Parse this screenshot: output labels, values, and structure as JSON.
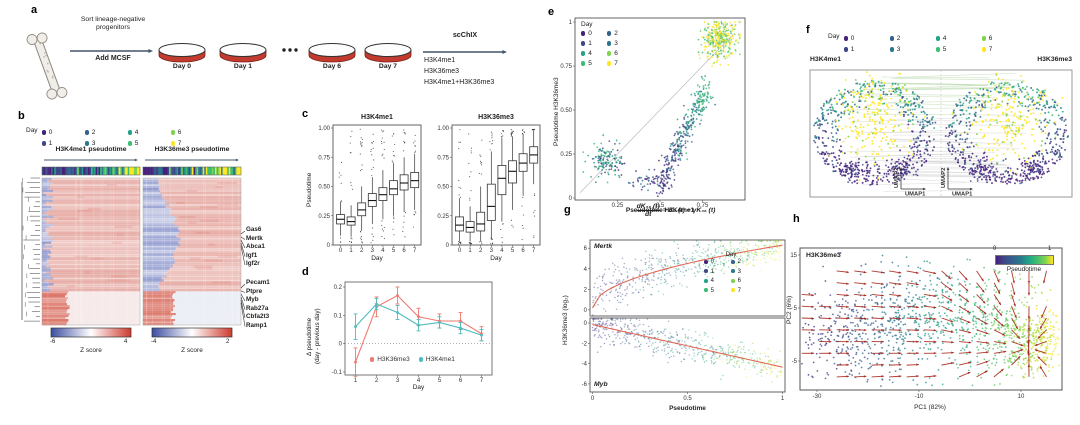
{
  "colors": {
    "day": [
      "#45217c",
      "#3f4788",
      "#34618d",
      "#2a788e",
      "#20a386",
      "#3dbc74",
      "#7ed34f",
      "#fde725"
    ],
    "salmon": "#ee7a6e",
    "teal": "#4fbcbf",
    "fit_red": "#e05a45",
    "quiver": "#a8271c",
    "heat_blue": "#7b87c6",
    "heat_pink": "#e29a92",
    "heat_red": "#d96a5c",
    "zscore_blue": "#3b4da0",
    "zscore_red": "#cf3a2e",
    "arrow_dark": "#44546a"
  },
  "day_legend": {
    "title": "Day",
    "days": [
      "0",
      "1",
      "2",
      "3",
      "4",
      "5",
      "6",
      "7"
    ]
  },
  "panel_a": {
    "label": "a",
    "sort_line1": "Sort lineage-negative",
    "sort_line2": "progenitors",
    "add_label": "Add MCSF",
    "dish_labels": [
      "Day 0",
      "Day 1",
      "Day 6",
      "Day 7"
    ],
    "scchix_label": "scChIX",
    "assays": [
      "H3K4me1",
      "H3K36me3",
      "H3K4me1+H3K36me3"
    ]
  },
  "panel_b": {
    "label": "b",
    "titles": [
      "H3K4me1 pseudotime",
      "H3K36me3 pseudotime"
    ],
    "genes_top": [
      "Gas6",
      "Mertk",
      "Abca1",
      "Igf1",
      "Igf2r"
    ],
    "genes_bottom": [
      "Pecam1",
      "Ptpre",
      "Myb",
      "Rab27a",
      "Cbfa2t3",
      "Ramp1"
    ],
    "colorbars": [
      {
        "min": "-6",
        "max": "4",
        "label": "Z score"
      },
      {
        "min": "-4",
        "max": "2",
        "label": "Z score"
      }
    ]
  },
  "panel_c": {
    "label": "c"
  },
  "panel_d": {
    "label": "d"
  },
  "panel_e": {
    "label": "e"
  },
  "panel_f": {
    "label": "f",
    "titles": [
      "H3K4me1",
      "H3K36me3"
    ],
    "x_axis": "UMAP1",
    "y_axis": "UMAP2"
  },
  "panel_g": {
    "label": "g",
    "equation": {
      "num": "dK₃₆ (t)",
      "den": "dt",
      "rhs": "= K₄ (t) − γK₃₆ (t)"
    }
  },
  "panel_h": {
    "label": "h",
    "title": "H3K36me3",
    "colorbar": {
      "min": "0",
      "max": "1",
      "label": "Pseudotime"
    }
  },
  "chart_data": [
    {
      "id": "c",
      "type": "boxplot",
      "xlabel": "Day",
      "ylabel": "Pseudotime",
      "categories": [
        "0",
        "1",
        "2",
        "3",
        "4",
        "5",
        "6",
        "7"
      ],
      "yticks": [
        "1.00",
        "0.75",
        "0.50",
        "0.25",
        "0"
      ],
      "ytick_vals": [
        1,
        0.75,
        0.5,
        0.25,
        0
      ],
      "panels": [
        {
          "title": "H3K4me1",
          "median": [
            0.22,
            0.2,
            0.3,
            0.38,
            0.43,
            0.48,
            0.53,
            0.55
          ],
          "q1": [
            0.18,
            0.17,
            0.25,
            0.33,
            0.38,
            0.43,
            0.47,
            0.49
          ],
          "q3": [
            0.26,
            0.24,
            0.36,
            0.44,
            0.49,
            0.55,
            0.6,
            0.62
          ],
          "lo": [
            0.08,
            0.07,
            0.12,
            0.18,
            0.22,
            0.25,
            0.28,
            0.3
          ],
          "hi": [
            0.37,
            0.34,
            0.5,
            0.58,
            0.64,
            0.7,
            0.75,
            0.78
          ]
        },
        {
          "title": "H3K36me3",
          "median": [
            0.17,
            0.15,
            0.18,
            0.33,
            0.57,
            0.63,
            0.7,
            0.77
          ],
          "q1": [
            0.12,
            0.11,
            0.12,
            0.21,
            0.43,
            0.53,
            0.63,
            0.7
          ],
          "q3": [
            0.24,
            0.2,
            0.28,
            0.52,
            0.68,
            0.72,
            0.78,
            0.84
          ],
          "lo": [
            0.03,
            0.03,
            0.03,
            0.06,
            0.2,
            0.3,
            0.42,
            0.52
          ],
          "hi": [
            0.4,
            0.33,
            0.5,
            0.8,
            0.92,
            0.93,
            0.95,
            0.98
          ]
        }
      ]
    },
    {
      "id": "d",
      "type": "line",
      "xlabel": "Day",
      "x": [
        1,
        2,
        3,
        4,
        5,
        6,
        7
      ],
      "ylabel_line1": "Δ pseudotime",
      "ylabel_line2": "(day - previous day)",
      "yticks": [
        "0.2",
        "0.1",
        "0",
        "-0.1"
      ],
      "ytick_vals": [
        0.2,
        0.1,
        0,
        -0.1
      ],
      "series": [
        {
          "name": "H3K36me3",
          "color_key": "salmon",
          "values": [
            -0.065,
            0.13,
            0.17,
            0.095,
            0.08,
            0.08,
            0.035
          ],
          "err": [
            0.05,
            0.035,
            0.03,
            0.03,
            0.025,
            0.03,
            0.025
          ]
        },
        {
          "name": "H3K4me1",
          "color_key": "teal",
          "values": [
            0.06,
            0.14,
            0.11,
            0.065,
            0.075,
            0.055,
            0.03
          ],
          "err": [
            0.045,
            0.02,
            0.025,
            0.02,
            0.02,
            0.02,
            0.02
          ]
        }
      ]
    },
    {
      "id": "e",
      "type": "scatter",
      "xlabel": "Pseudotime H3K4me1",
      "ylabel": "Pseudotime H3K36me3",
      "xticks": [
        "0.25",
        "0.5",
        "0.75"
      ],
      "xtick_vals": [
        0.25,
        0.5,
        0.75
      ],
      "yticks": [
        "1",
        "0.75",
        "0.50",
        "0.25",
        "0"
      ],
      "ytick_vals": [
        1,
        0.75,
        0.5,
        0.25,
        0
      ],
      "identity_line": true,
      "clusters": [
        {
          "kind": "blob",
          "cx": 0.18,
          "cy": 0.22,
          "sx": 0.055,
          "sy": 0.05,
          "n": 140,
          "days": [
            0,
            1,
            2,
            3,
            4,
            4,
            5,
            5
          ]
        },
        {
          "kind": "blob",
          "cx": 0.42,
          "cy": 0.09,
          "sx": 0.07,
          "sy": 0.035,
          "n": 55,
          "days": [
            0,
            0,
            1,
            2,
            3
          ]
        },
        {
          "kind": "band",
          "x0": 0.5,
          "y0": 0.06,
          "x1": 0.78,
          "y1": 0.64,
          "sx": 0.02,
          "sy": 0.045,
          "n": 340,
          "days": [
            0,
            1,
            2,
            3,
            4,
            5
          ]
        },
        {
          "kind": "blob",
          "cx": 0.85,
          "cy": 0.9,
          "sx": 0.05,
          "sy": 0.06,
          "n": 330,
          "days": [
            5,
            6,
            6,
            7,
            7,
            7
          ]
        }
      ]
    },
    {
      "id": "g",
      "type": "scatter",
      "xlabel": "Pseudotime",
      "ylabel": "H3K36me3 (log₂)",
      "xticks": [
        "0",
        "0.5",
        "1"
      ],
      "xtick_vals": [
        0,
        0.5,
        1
      ],
      "subpanels": [
        {
          "gene": "Mertk",
          "yticks": [
            "6",
            "4",
            "2",
            "0"
          ],
          "ytick_vals": [
            6,
            4,
            2,
            0
          ],
          "ymin": -0.6,
          "ymax": 6.8,
          "trend": "rise",
          "fit_a": 0.2,
          "fit_b": 6.1,
          "fit_pow": 0.5,
          "noise": 1.05
        },
        {
          "gene": "Myb",
          "yticks": [
            "0",
            "-2",
            "-4",
            "-6"
          ],
          "ytick_vals": [
            0,
            -2,
            -4,
            -6
          ],
          "ymin": -6.8,
          "ymax": 0.5,
          "trend": "fall",
          "fit_a": -0.15,
          "fit_b": -4.2,
          "fit_pow": 1,
          "noise": 0.95
        }
      ]
    },
    {
      "id": "h",
      "type": "scatter-quiver",
      "xlabel": "PC1 (82%)",
      "ylabel": "PC2 (6%)",
      "xticks": [
        "-30",
        "-10",
        "10"
      ],
      "xtick_vals": [
        -30,
        -10,
        10
      ],
      "yticks": [
        "15",
        "5",
        "-5"
      ],
      "ytick_vals": [
        15,
        5,
        -5
      ],
      "clusters": [
        {
          "cx": -21,
          "cy": 0,
          "sx": 7.5,
          "sy": 5,
          "n": 430
        },
        {
          "cx": -5,
          "cy": 4.5,
          "sx": 7,
          "sy": 4.5,
          "n": 300
        },
        {
          "cx": 7,
          "cy": 1,
          "sx": 6,
          "sy": 4.5,
          "n": 280
        },
        {
          "cx": 12.5,
          "cy": -1.5,
          "sx": 3.2,
          "sy": 2.8,
          "n": 260
        }
      ],
      "pseudotime_map": "(x+35)/52",
      "quiver": {
        "attractor": [
          11.5,
          -2.5
        ],
        "xrange": [
          -33,
          15
        ],
        "yrange": [
          -8,
          12
        ],
        "cols": 15,
        "rows": 10,
        "len": 2.4
      }
    },
    {
      "id": "f",
      "type": "umap-pair",
      "lines_n": 46,
      "points_per_cloud": 540,
      "center_blob_n": 230
    },
    {
      "id": "b_heat",
      "type": "heatmap",
      "rows": 74,
      "strip_cols": 64,
      "bottom_frac": 0.23,
      "left": {
        "blue_edge": "narrow",
        "red_block_w": 26
      },
      "right": {
        "blue_edge": "wide",
        "red_block_w": 30
      }
    }
  ]
}
